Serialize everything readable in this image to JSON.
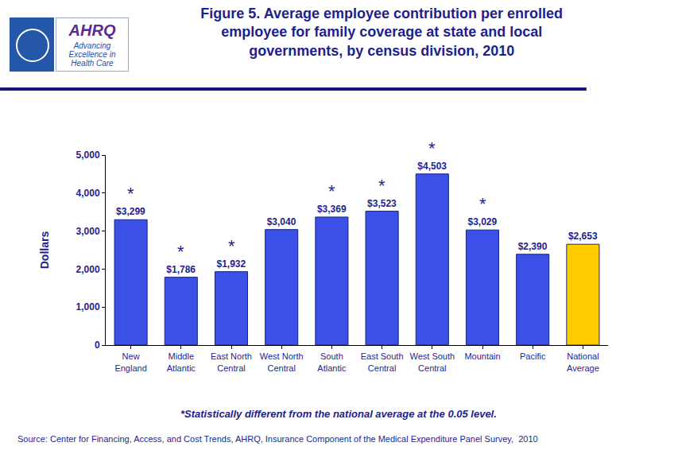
{
  "chart_data": {
    "type": "bar",
    "title": "Figure 5. Average employee contribution per enrolled employee for family coverage at state and local governments, by census division, 2010",
    "y_label": "Dollars",
    "categories": [
      "New England",
      "Middle Atlantic",
      "East North Central",
      "West North Central",
      "South Atlantic",
      "East South Central",
      "West South Central",
      "Mountain",
      "Pacific",
      "National Average"
    ],
    "values": [
      3299,
      1786,
      1932,
      3040,
      3369,
      3523,
      4503,
      3029,
      2390,
      2653
    ],
    "value_labels": [
      "$3,299",
      "$1,786",
      "$1,932",
      "$3,040",
      "$3,369",
      "$3,523",
      "$4,503",
      "$3,029",
      "$2,390",
      "$2,653"
    ],
    "colors": [
      "#3a50e6",
      "#3a50e6",
      "#3a50e6",
      "#3a50e6",
      "#3a50e6",
      "#3a50e6",
      "#3a50e6",
      "#3a50e6",
      "#3a50e6",
      "#ffcc00"
    ],
    "data_labels": true,
    "ylim": [
      0,
      5000
    ],
    "yticks": [
      0,
      {
        "value": 1000,
        "label": "1,000"
      },
      {
        "value": 2000,
        "label": "2,000"
      },
      {
        "value": 3000,
        "label": "3,000"
      },
      {
        "value": 4000,
        "label": "4,000"
      },
      {
        "value": 5000,
        "label": "5,000"
      }
    ],
    "grid": false,
    "annotations": [
      {
        "category": "New England",
        "text": "*"
      },
      {
        "category": "Middle Atlantic",
        "text": "*"
      },
      {
        "category": "East North Central",
        "text": "*"
      },
      {
        "category": "South Atlantic",
        "text": "*"
      },
      {
        "category": "East South Central",
        "text": "*"
      },
      {
        "category": "West South Central",
        "text": "*"
      },
      {
        "category": "Mountain",
        "text": "*"
      }
    ],
    "footnote": "*Statistically different from the national average at the 0.05 level.",
    "source": "Source: Center for Financing, Access, and Cost Trends, AHRQ, Insurance Component of the Medical Expenditure Panel Survey,  2010",
    "logo": {
      "name": "AHRQ",
      "tagline": "Advancing Excellence in Health Care"
    }
  }
}
